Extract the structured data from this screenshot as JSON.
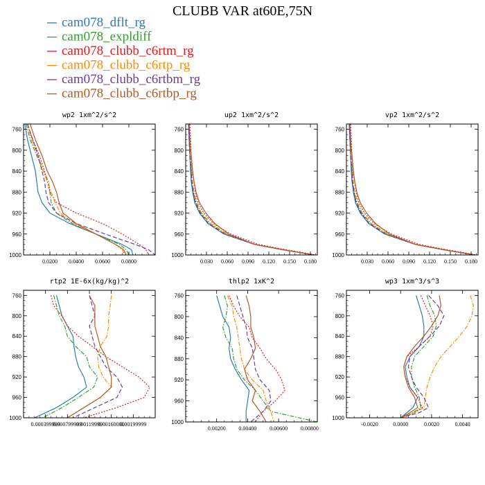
{
  "figure_title": "CLUBB VAR at60E,75N",
  "legend": [
    {
      "name": "cam078_dflt_rg",
      "color": "#2b7bba",
      "dash": "solid"
    },
    {
      "name": "cam078_expldiff",
      "color": "#31a02c",
      "dash": "dashdot"
    },
    {
      "name": "cam078_clubb_c6rtm_rg",
      "color": "#e31a1c",
      "dash": "dotted"
    },
    {
      "name": "cam078_clubb_c6rtp_rg",
      "color": "#ff8c00",
      "dash": "dashdot"
    },
    {
      "name": "cam078_clubb_c6rtbm_rg",
      "color": "#6a3d9a",
      "dash": "dashed"
    },
    {
      "name": "cam078_clubb_c6rtbp_rg",
      "color": "#b15928",
      "dash": "solid"
    }
  ],
  "chart_data": [
    {
      "type": "line",
      "title": "wp2   1xm^2/s^2",
      "xlim": [
        0,
        0.1
      ],
      "ylim": [
        1000,
        750
      ],
      "y_reversed": true,
      "xticks": [
        0.02,
        0.04,
        0.06,
        0.08
      ],
      "xtick_labels": [
        "0.0200",
        "0.0400",
        "0.0600",
        "0.0800"
      ],
      "yticks": [
        760,
        800,
        840,
        880,
        920,
        960,
        1000
      ],
      "y": [
        750,
        780,
        810,
        840,
        860,
        880,
        900,
        920,
        940,
        960,
        980,
        990,
        1000
      ],
      "series": [
        {
          "values": [
            0.001,
            0.003,
            0.006,
            0.009,
            0.01,
            0.011,
            0.014,
            0.02,
            0.035,
            0.055,
            0.075,
            0.082,
            0.083
          ]
        },
        {
          "values": [
            0.002,
            0.005,
            0.01,
            0.015,
            0.019,
            0.02,
            0.021,
            0.025,
            0.037,
            0.055,
            0.073,
            0.078,
            0.08
          ]
        },
        {
          "values": [
            0.003,
            0.007,
            0.012,
            0.016,
            0.018,
            0.02,
            0.025,
            0.04,
            0.06,
            0.075,
            0.088,
            0.093,
            0.095
          ]
        },
        {
          "values": [
            0.003,
            0.006,
            0.011,
            0.015,
            0.018,
            0.021,
            0.024,
            0.028,
            0.038,
            0.055,
            0.07,
            0.075,
            0.077
          ]
        },
        {
          "values": [
            0.003,
            0.007,
            0.011,
            0.014,
            0.016,
            0.017,
            0.019,
            0.025,
            0.04,
            0.062,
            0.085,
            0.095,
            0.1
          ]
        },
        {
          "values": [
            0.005,
            0.009,
            0.014,
            0.018,
            0.022,
            0.025,
            0.027,
            0.03,
            0.04,
            0.055,
            0.07,
            0.076,
            0.078
          ]
        }
      ]
    },
    {
      "type": "line",
      "title": "up2   1xm^2/s^2",
      "xlim": [
        0,
        0.19
      ],
      "ylim": [
        1000,
        750
      ],
      "y_reversed": true,
      "xticks": [
        0.03,
        0.06,
        0.09,
        0.12,
        0.15,
        0.18
      ],
      "xtick_labels": [
        "0.030",
        "0.060",
        "0.090",
        "0.120",
        "0.150",
        "0.180"
      ],
      "yticks": [
        760,
        800,
        840,
        880,
        920,
        960,
        1000
      ],
      "y": [
        750,
        780,
        810,
        840,
        860,
        880,
        900,
        920,
        940,
        960,
        980,
        990,
        1000
      ],
      "series": [
        {
          "values": [
            0.004,
            0.005,
            0.006,
            0.007,
            0.008,
            0.01,
            0.013,
            0.02,
            0.032,
            0.055,
            0.1,
            0.14,
            0.185
          ]
        },
        {
          "values": [
            0.005,
            0.006,
            0.007,
            0.008,
            0.009,
            0.011,
            0.015,
            0.022,
            0.035,
            0.058,
            0.1,
            0.14,
            0.185
          ]
        },
        {
          "values": [
            0.006,
            0.007,
            0.008,
            0.01,
            0.012,
            0.014,
            0.018,
            0.026,
            0.04,
            0.065,
            0.105,
            0.145,
            0.188
          ]
        },
        {
          "values": [
            0.005,
            0.006,
            0.007,
            0.009,
            0.01,
            0.012,
            0.016,
            0.023,
            0.036,
            0.06,
            0.1,
            0.14,
            0.185
          ]
        },
        {
          "values": [
            0.004,
            0.005,
            0.006,
            0.008,
            0.009,
            0.011,
            0.014,
            0.021,
            0.033,
            0.056,
            0.1,
            0.14,
            0.185
          ]
        },
        {
          "values": [
            0.005,
            0.006,
            0.008,
            0.01,
            0.012,
            0.015,
            0.02,
            0.029,
            0.042,
            0.062,
            0.1,
            0.14,
            0.185
          ]
        }
      ]
    },
    {
      "type": "line",
      "title": "vp2   1xm^2/s^2",
      "xlim": [
        0,
        0.19
      ],
      "ylim": [
        1000,
        750
      ],
      "y_reversed": true,
      "xticks": [
        0.03,
        0.06,
        0.09,
        0.12,
        0.15,
        0.18
      ],
      "xtick_labels": [
        "0.030",
        "0.060",
        "0.090",
        "0.120",
        "0.150",
        "0.180"
      ],
      "yticks": [
        760,
        800,
        840,
        880,
        920,
        960,
        1000
      ],
      "y": [
        750,
        780,
        810,
        840,
        860,
        880,
        900,
        920,
        940,
        960,
        980,
        990,
        1000
      ],
      "series": [
        {
          "values": [
            0.004,
            0.005,
            0.006,
            0.007,
            0.008,
            0.01,
            0.013,
            0.02,
            0.032,
            0.055,
            0.1,
            0.14,
            0.185
          ]
        },
        {
          "values": [
            0.005,
            0.006,
            0.007,
            0.008,
            0.009,
            0.011,
            0.015,
            0.022,
            0.035,
            0.058,
            0.1,
            0.14,
            0.185
          ]
        },
        {
          "values": [
            0.006,
            0.007,
            0.008,
            0.01,
            0.012,
            0.014,
            0.018,
            0.026,
            0.04,
            0.065,
            0.105,
            0.145,
            0.188
          ]
        },
        {
          "values": [
            0.005,
            0.006,
            0.007,
            0.009,
            0.01,
            0.012,
            0.016,
            0.023,
            0.036,
            0.06,
            0.1,
            0.14,
            0.185
          ]
        },
        {
          "values": [
            0.004,
            0.005,
            0.006,
            0.008,
            0.009,
            0.011,
            0.014,
            0.021,
            0.033,
            0.056,
            0.1,
            0.14,
            0.185
          ]
        },
        {
          "values": [
            0.005,
            0.006,
            0.008,
            0.01,
            0.012,
            0.015,
            0.02,
            0.029,
            0.042,
            0.062,
            0.1,
            0.14,
            0.185
          ]
        }
      ]
    },
    {
      "type": "line",
      "title": "rtp2   1E-6x(kg/kg)^2",
      "xlim": [
        0,
        0.0024
      ],
      "ylim": [
        1000,
        750
      ],
      "y_reversed": true,
      "xticks": [
        0.0004,
        0.0008,
        0.0012,
        0.0016,
        0.002
      ],
      "xtick_labels": [
        "0.000399999",
        "0.000799999",
        "0.00119999",
        "0.00160000",
        "0.00199999"
      ],
      "yticks": [
        760,
        800,
        840,
        880,
        920,
        960,
        1000
      ],
      "y": [
        760,
        780,
        800,
        820,
        840,
        860,
        880,
        900,
        920,
        940,
        960,
        980,
        1000
      ],
      "series": [
        {
          "values": [
            0.0006,
            0.00065,
            0.0007,
            0.0008,
            0.0009,
            0.00092,
            0.00095,
            0.001,
            0.0011,
            0.00115,
            0.0009,
            0.0006,
            0.0002
          ]
        },
        {
          "values": [
            0.00055,
            0.0006,
            0.00065,
            0.00075,
            0.0008,
            0.00095,
            0.00115,
            0.0012,
            0.00135,
            0.00128,
            0.001,
            0.0007,
            0.00035
          ]
        },
        {
          "values": [
            0.0005,
            0.00055,
            0.0007,
            0.0008,
            0.001,
            0.00125,
            0.0015,
            0.0018,
            0.0021,
            0.0023,
            0.0022,
            0.0017,
            0.0011
          ]
        },
        {
          "values": [
            0.0016,
            0.00158,
            0.00155,
            0.00155,
            0.00152,
            0.0014,
            0.00135,
            0.00137,
            0.00145,
            0.0016,
            0.0014,
            0.0011,
            0.0008
          ]
        },
        {
          "values": [
            0.0012,
            0.00125,
            0.0013,
            0.0012,
            0.00125,
            0.0013,
            0.0014,
            0.0015,
            0.0017,
            0.0018,
            0.0017,
            0.0013,
            0.0009
          ]
        },
        {
          "values": [
            0.0012,
            0.0013,
            0.0013,
            0.0013,
            0.00135,
            0.0014,
            0.0015,
            0.00155,
            0.0016,
            0.0016,
            0.0014,
            0.0011,
            0.0008
          ]
        }
      ]
    },
    {
      "type": "line",
      "title": "thlp2   1xK^2",
      "xlim": [
        0,
        0.0085
      ],
      "ylim": [
        1000,
        750
      ],
      "y_reversed": true,
      "xticks": [
        0.002,
        0.004,
        0.006,
        0.008
      ],
      "xtick_labels": [
        "0.00200",
        "0.00400",
        "0.00600",
        "0.00800"
      ],
      "yticks": [
        760,
        800,
        840,
        880,
        920,
        960,
        1000
      ],
      "y": [
        760,
        780,
        800,
        820,
        840,
        860,
        880,
        900,
        920,
        940,
        960,
        980,
        1000
      ],
      "series": [
        {
          "values": [
            0.002,
            0.0022,
            0.0024,
            0.0028,
            0.0029,
            0.0028,
            0.0029,
            0.0032,
            0.0036,
            0.0041,
            0.004,
            0.0039,
            0.0039
          ]
        },
        {
          "values": [
            0.0025,
            0.0027,
            0.0026,
            0.0024,
            0.0026,
            0.003,
            0.0031,
            0.0033,
            0.0038,
            0.0045,
            0.005,
            0.0055,
            0.0085
          ]
        },
        {
          "values": [
            0.0028,
            0.0031,
            0.0035,
            0.0041,
            0.0043,
            0.0048,
            0.0052,
            0.0058,
            0.0062,
            0.0064,
            0.0058,
            0.005,
            0.0045
          ]
        },
        {
          "values": [
            0.0027,
            0.003,
            0.0031,
            0.0033,
            0.0034,
            0.0035,
            0.0036,
            0.0038,
            0.0043,
            0.005,
            0.0052,
            0.0055,
            0.0057
          ]
        },
        {
          "values": [
            0.0033,
            0.0035,
            0.0037,
            0.0039,
            0.004,
            0.0043,
            0.0044,
            0.0045,
            0.0048,
            0.0054,
            0.0055,
            0.005,
            0.0042
          ]
        },
        {
          "values": [
            0.0039,
            0.0041,
            0.0042,
            0.0042,
            0.0044,
            0.0045,
            0.0042,
            0.0038,
            0.004,
            0.0045,
            0.0043,
            0.0048,
            0.0052
          ]
        }
      ]
    },
    {
      "type": "line",
      "title": "wp3   1xm^3/s^3",
      "xlim": [
        -0.0035,
        0.005
      ],
      "ylim": [
        1000,
        750
      ],
      "y_reversed": true,
      "xticks": [
        -0.002,
        0.0,
        0.002,
        0.004
      ],
      "xtick_labels": [
        "-0.0020",
        "0.0000",
        "0.0020",
        "0.0040"
      ],
      "yticks": [
        760,
        800,
        840,
        880,
        920,
        960,
        1000
      ],
      "y": [
        760,
        780,
        800,
        820,
        840,
        860,
        880,
        900,
        920,
        940,
        960,
        980,
        990,
        1000
      ],
      "series": [
        {
          "values": [
            0.001,
            0.0012,
            0.0014,
            0.0015,
            0.0015,
            0.0012,
            0.0006,
            0.0003,
            0.0004,
            0.0006,
            0.0011,
            0.0008,
            0.0004,
            0.0
          ]
        },
        {
          "values": [
            0.0017,
            0.0019,
            0.0022,
            0.0023,
            0.0021,
            0.0015,
            0.0009,
            0.0007,
            0.0007,
            0.0009,
            0.0012,
            0.0013,
            0.0008,
            0.0
          ]
        },
        {
          "values": [
            0.0013,
            0.0016,
            0.0019,
            0.0021,
            0.0019,
            0.0012,
            0.0004,
            0.0002,
            0.0003,
            0.0006,
            0.0011,
            0.0014,
            0.0009,
            0.0
          ]
        },
        {
          "values": [
            0.0045,
            0.0047,
            0.0046,
            0.0043,
            0.0038,
            0.0032,
            0.0026,
            0.0022,
            0.0019,
            0.0017,
            0.0016,
            0.0015,
            0.0009,
            0.0
          ]
        },
        {
          "values": [
            0.0018,
            0.0024,
            0.0028,
            0.0025,
            0.0019,
            0.0012,
            0.0006,
            0.0005,
            0.0007,
            0.001,
            0.0015,
            0.0018,
            0.0012,
            0.0
          ]
        },
        {
          "values": [
            0.0025,
            0.0026,
            0.0024,
            0.002,
            0.0015,
            0.0009,
            0.0004,
            0.0002,
            0.0003,
            0.0005,
            0.0009,
            0.0011,
            0.0006,
            0.0
          ]
        }
      ]
    }
  ]
}
